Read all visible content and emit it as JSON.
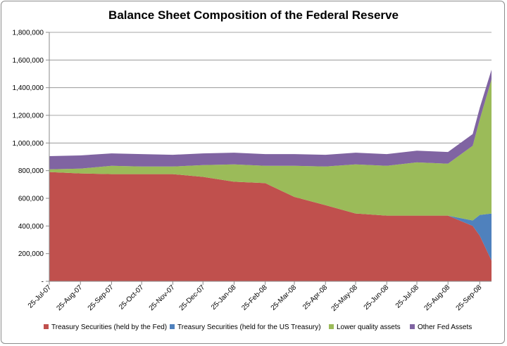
{
  "chart_data": {
    "type": "area",
    "stacked": true,
    "title": "Balance Sheet Composition of the Federal Reserve",
    "xlabel": "",
    "ylabel": "",
    "ylim": [
      0,
      1800000
    ],
    "yticks": [
      0,
      200000,
      400000,
      600000,
      800000,
      1000000,
      1200000,
      1400000,
      1600000,
      1800000
    ],
    "ytick_labels": [
      "-",
      "200,000",
      "400,000",
      "600,000",
      "800,000",
      "1,000,000",
      "1,200,000",
      "1,400,000",
      "1,600,000",
      "1,800,000"
    ],
    "grid": true,
    "legend_position": "bottom",
    "x": [
      "25-Jul-07",
      "25-Aug-07",
      "25-Sep-07",
      "25-Oct-07",
      "25-Nov-07",
      "25-Dec-07",
      "25-Jan-08",
      "25-Feb-08",
      "25-Mar-08",
      "25-Apr-08",
      "25-May-08",
      "25-Jun-08",
      "25-Jul-08",
      "25-Aug-08",
      "17-Sep-08",
      "25-Sep-08",
      "02-Oct-08"
    ],
    "x_tick_labels": [
      "25-Jul-07",
      "25-Aug-07",
      "25-Sep-07",
      "25-Oct-07",
      "25-Nov-07",
      "25-Dec-07",
      "25-Jan-08",
      "25-Feb-08",
      "25-Mar-08",
      "25-Apr-08",
      "25-May-08",
      "25-Jun-08",
      "25-Jul-08",
      "25-Aug-08",
      "25-Sep-08"
    ],
    "series": [
      {
        "name": "Treasury Securities (held by the Fed)",
        "color": "#c0504d",
        "values": [
          790000,
          780000,
          775000,
          775000,
          775000,
          755000,
          720000,
          710000,
          610000,
          550000,
          490000,
          475000,
          475000,
          475000,
          400000,
          330000,
          150000
        ]
      },
      {
        "name": "Treasury Securities (held for the US Treasury)",
        "color": "#4f81bd",
        "values": [
          0,
          0,
          0,
          0,
          0,
          0,
          0,
          0,
          0,
          0,
          0,
          0,
          0,
          0,
          40000,
          150000,
          340000
        ]
      },
      {
        "name": "Lower quality assets",
        "color": "#9bbb59",
        "values": [
          20000,
          35000,
          60000,
          55000,
          55000,
          85000,
          125000,
          125000,
          225000,
          280000,
          355000,
          360000,
          385000,
          375000,
          540000,
          690000,
          970000
        ]
      },
      {
        "name": "Other Fed Assets",
        "color": "#8064a2",
        "values": [
          95000,
          95000,
          90000,
          90000,
          85000,
          85000,
          85000,
          85000,
          85000,
          85000,
          85000,
          85000,
          85000,
          85000,
          85000,
          85000,
          70000
        ]
      }
    ]
  }
}
